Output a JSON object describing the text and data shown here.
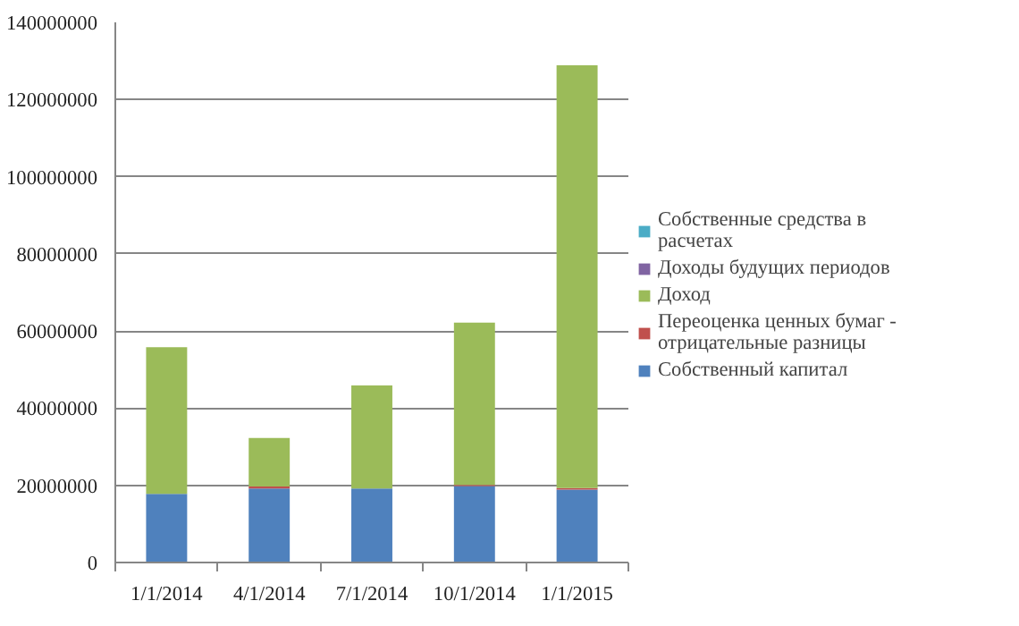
{
  "chart_data": {
    "type": "bar",
    "stacked": true,
    "categories": [
      "1/1/2014",
      "4/1/2014",
      "7/1/2014",
      "10/1/2014",
      "1/1/2015"
    ],
    "series": [
      {
        "name": "Собственный капитал",
        "color": "#4f81bd",
        "values": [
          17800000,
          19200000,
          19200000,
          19800000,
          18900000
        ]
      },
      {
        "name": "Переоценка ценных бумаг - отрицательные разницы",
        "color": "#c0504d",
        "values": [
          0,
          500000,
          0,
          300000,
          400000
        ]
      },
      {
        "name": "Доход",
        "color": "#9bbb59",
        "values": [
          38000000,
          12600000,
          26700000,
          42100000,
          109600000
        ]
      },
      {
        "name": "Доходы будущих периодов",
        "color": "#8064a2",
        "values": [
          0,
          0,
          0,
          0,
          0
        ]
      },
      {
        "name": "Собственные средства в расчетах",
        "color": "#4bacc6",
        "values": [
          0,
          0,
          0,
          0,
          0
        ]
      }
    ],
    "ylim": [
      0,
      140000000
    ],
    "yticks": [
      0,
      20000000,
      40000000,
      60000000,
      80000000,
      100000000,
      120000000,
      140000000
    ],
    "grid": "y",
    "legend": "right"
  }
}
